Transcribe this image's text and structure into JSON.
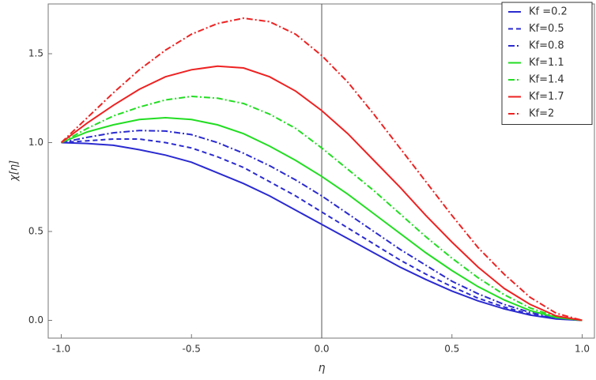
{
  "chart_data": {
    "type": "line",
    "x_label": "η",
    "y_label": "χ[η]",
    "xlim": [
      -1.05,
      1.05
    ],
    "ylim": [
      -0.1,
      1.78
    ],
    "xticks": [
      {
        "value": -1.0,
        "label": "-1.0"
      },
      -0.5,
      {
        "value": 0.0,
        "label": "0.0"
      },
      0.5,
      {
        "value": 1.0,
        "label": "1.0"
      }
    ],
    "yticks": [
      {
        "value": 0.0,
        "label": "0.0"
      },
      0.5,
      {
        "value": 1.0,
        "label": "1.0"
      },
      1.5
    ],
    "x": [
      -1,
      -0.9,
      -0.8,
      -0.7,
      -0.6,
      -0.5,
      -0.4,
      -0.3,
      -0.2,
      -0.1,
      0,
      0.1,
      0.2,
      0.3,
      0.4,
      0.5,
      0.6,
      0.7,
      0.8,
      0.9,
      1
    ],
    "series": [
      {
        "name": "Kf =0.2",
        "color": "#2b2bd0",
        "style": "solid",
        "values": [
          1,
          0.995,
          0.985,
          0.96,
          0.93,
          0.89,
          0.83,
          0.77,
          0.7,
          0.62,
          0.54,
          0.46,
          0.38,
          0.3,
          0.23,
          0.165,
          0.11,
          0.065,
          0.03,
          0.008,
          0
        ]
      },
      {
        "name": "Kf=0.5",
        "color": "#2b2bd0",
        "style": "dashed",
        "values": [
          1,
          1.01,
          1.02,
          1.02,
          1.0,
          0.97,
          0.92,
          0.86,
          0.78,
          0.7,
          0.61,
          0.52,
          0.43,
          0.34,
          0.26,
          0.19,
          0.125,
          0.075,
          0.035,
          0.01,
          0
        ]
      },
      {
        "name": "Kf=0.8",
        "color": "#2b2bd0",
        "style": "dashdot",
        "values": [
          1,
          1.03,
          1.055,
          1.068,
          1.065,
          1.045,
          1.0,
          0.94,
          0.87,
          0.79,
          0.7,
          0.6,
          0.5,
          0.4,
          0.31,
          0.22,
          0.15,
          0.09,
          0.045,
          0.013,
          0
        ]
      },
      {
        "name": "Kf=1.1",
        "color": "#22dd22",
        "style": "solid",
        "values": [
          1,
          1.06,
          1.1,
          1.13,
          1.14,
          1.13,
          1.1,
          1.05,
          0.98,
          0.9,
          0.81,
          0.71,
          0.6,
          0.49,
          0.38,
          0.28,
          0.19,
          0.115,
          0.055,
          0.016,
          0
        ]
      },
      {
        "name": "Kf=1.4",
        "color": "#22dd22",
        "style": "dashdot",
        "values": [
          1,
          1.08,
          1.15,
          1.2,
          1.24,
          1.26,
          1.25,
          1.22,
          1.16,
          1.08,
          0.97,
          0.85,
          0.73,
          0.6,
          0.47,
          0.35,
          0.24,
          0.145,
          0.07,
          0.02,
          0
        ]
      },
      {
        "name": "Kf=1.7",
        "color": "#ee2222",
        "style": "solid",
        "values": [
          1,
          1.11,
          1.21,
          1.3,
          1.37,
          1.41,
          1.43,
          1.42,
          1.37,
          1.29,
          1.18,
          1.05,
          0.9,
          0.75,
          0.59,
          0.44,
          0.3,
          0.18,
          0.09,
          0.025,
          0
        ]
      },
      {
        "name": "Kf=2",
        "color": "#ee2222",
        "style": "dashdot",
        "values": [
          1,
          1.14,
          1.28,
          1.41,
          1.52,
          1.61,
          1.67,
          1.7,
          1.68,
          1.61,
          1.49,
          1.34,
          1.16,
          0.97,
          0.78,
          0.59,
          0.41,
          0.26,
          0.13,
          0.04,
          0
        ]
      }
    ],
    "legend": "upper right"
  }
}
